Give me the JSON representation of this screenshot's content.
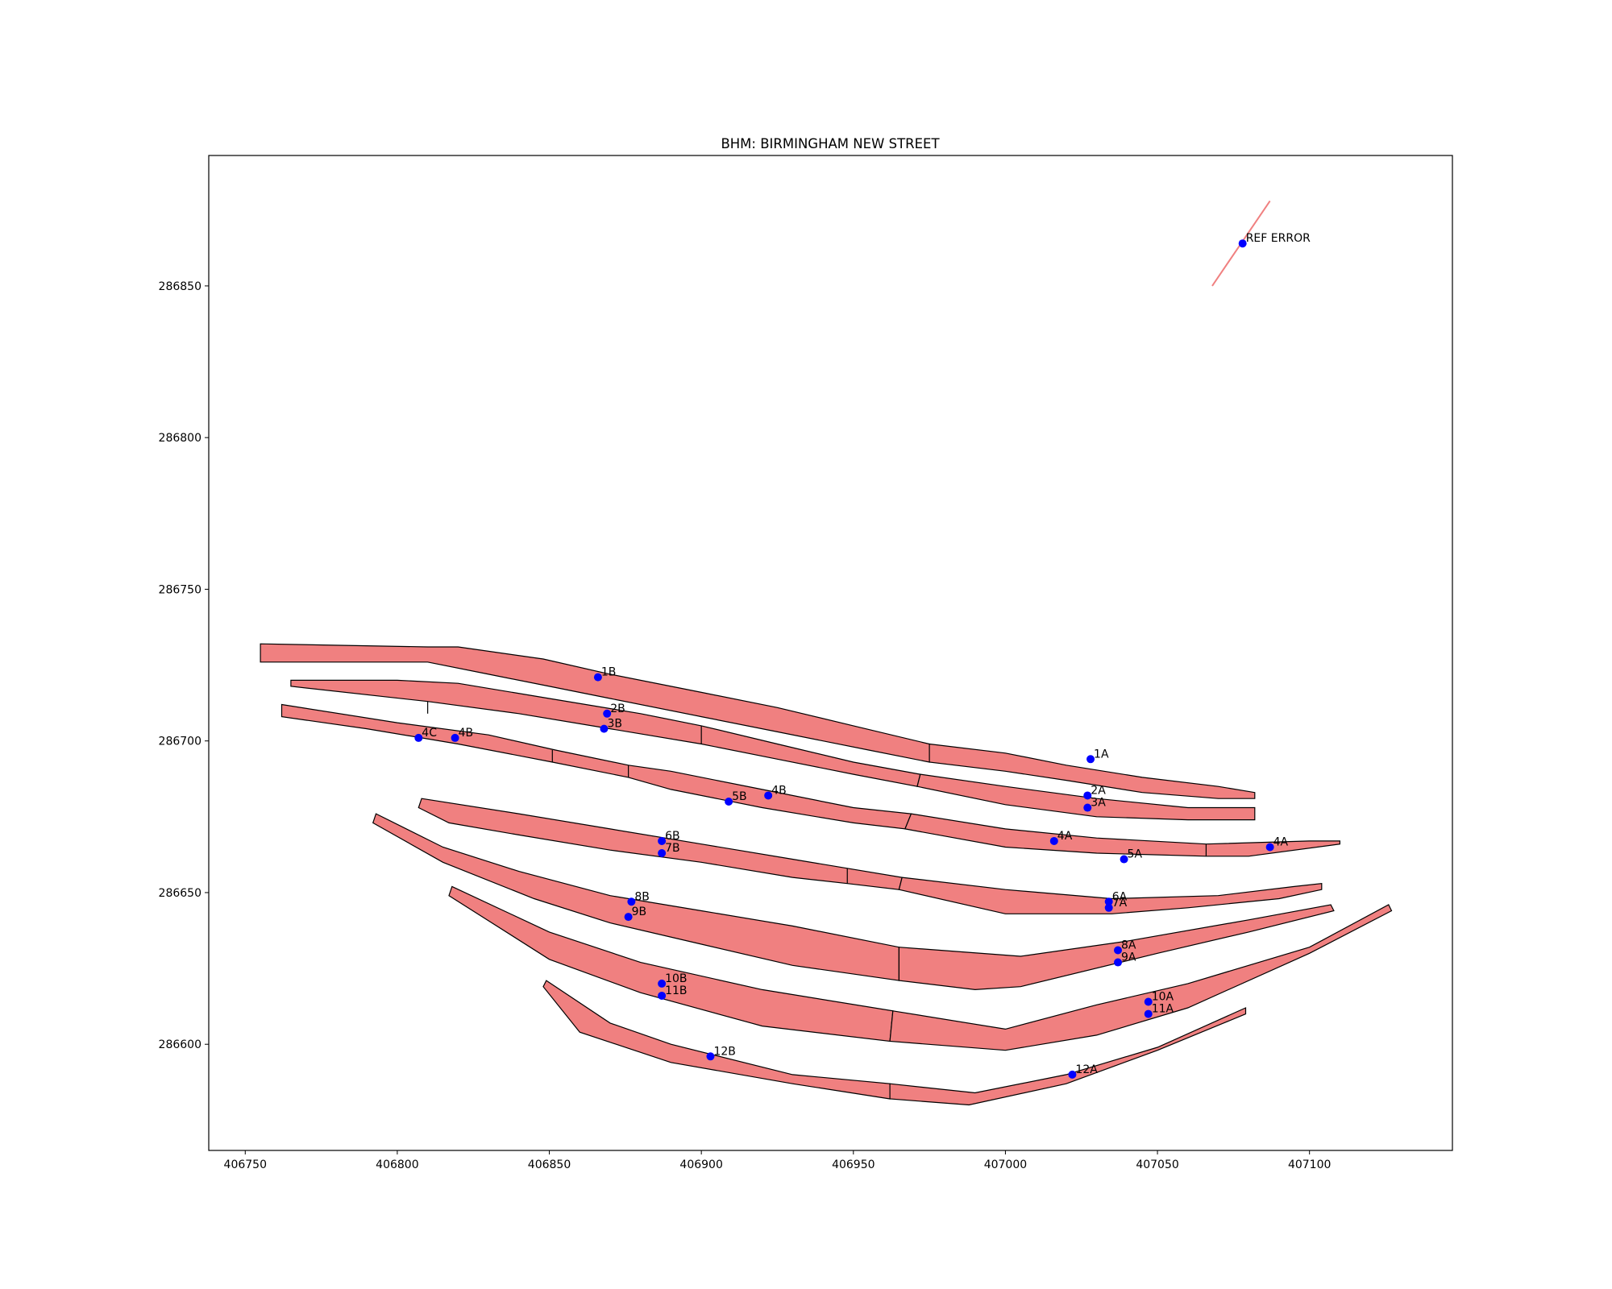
{
  "chart_data": {
    "type": "scatter",
    "title": "BHM: BIRMINGHAM NEW STREET",
    "xlabel": "",
    "ylabel": "",
    "xlim": [
      406738,
      407147
    ],
    "ylim": [
      286565,
      286893
    ],
    "xticks": [
      406750,
      406800,
      406850,
      406900,
      406950,
      407000,
      407050,
      407100
    ],
    "yticks": [
      286600,
      286650,
      286700,
      286750,
      286800,
      286850
    ],
    "grid": false,
    "colors": {
      "platform_fill": "#f08080",
      "platform_edge": "#000000",
      "point": "#0000ff",
      "error_line": "#f08080"
    },
    "points": [
      {
        "label": "REF ERROR",
        "x": 407078,
        "y": 286864
      },
      {
        "label": "1B",
        "x": 406866,
        "y": 286721
      },
      {
        "label": "1A",
        "x": 407028,
        "y": 286694
      },
      {
        "label": "2B",
        "x": 406869,
        "y": 286709
      },
      {
        "label": "3B",
        "x": 406868,
        "y": 286704
      },
      {
        "label": "2A",
        "x": 407027,
        "y": 286682
      },
      {
        "label": "3A",
        "x": 407027,
        "y": 286678
      },
      {
        "label": "4C",
        "x": 406807,
        "y": 286701
      },
      {
        "label": "4B",
        "x": 406819,
        "y": 286701
      },
      {
        "label": "5B",
        "x": 406909,
        "y": 286680
      },
      {
        "label": "4B",
        "x": 406922,
        "y": 286682
      },
      {
        "label": "4A",
        "x": 407016,
        "y": 286667
      },
      {
        "label": "5A",
        "x": 407039,
        "y": 286661
      },
      {
        "label": "4A",
        "x": 407087,
        "y": 286665
      },
      {
        "label": "6B",
        "x": 406887,
        "y": 286667
      },
      {
        "label": "7B",
        "x": 406887,
        "y": 286663
      },
      {
        "label": "6A",
        "x": 407034,
        "y": 286647
      },
      {
        "label": "7A",
        "x": 407034,
        "y": 286645
      },
      {
        "label": "8B",
        "x": 406877,
        "y": 286647
      },
      {
        "label": "9B",
        "x": 406876,
        "y": 286642
      },
      {
        "label": "8A",
        "x": 407037,
        "y": 286631
      },
      {
        "label": "9A",
        "x": 407037,
        "y": 286627
      },
      {
        "label": "10B",
        "x": 406887,
        "y": 286620
      },
      {
        "label": "11B",
        "x": 406887,
        "y": 286616
      },
      {
        "label": "10A",
        "x": 407047,
        "y": 286614
      },
      {
        "label": "11A",
        "x": 407047,
        "y": 286610
      },
      {
        "label": "12B",
        "x": 406903,
        "y": 286596
      },
      {
        "label": "12A",
        "x": 407022,
        "y": 286590
      }
    ],
    "error_line": [
      [
        407068,
        286850
      ],
      [
        407087,
        286878
      ]
    ],
    "platforms": [
      [
        [
          406755,
          286732
        ],
        [
          406810,
          286731
        ],
        [
          406820,
          286731
        ],
        [
          406848,
          286727
        ],
        [
          406870,
          286722
        ],
        [
          406900,
          286716
        ],
        [
          406925,
          286711
        ],
        [
          406950,
          286705
        ],
        [
          406975,
          286699
        ],
        [
          406975,
          286693
        ],
        [
          406955,
          286697
        ],
        [
          406925,
          286703
        ],
        [
          406900,
          286708
        ],
        [
          406870,
          286714
        ],
        [
          406850,
          286718
        ],
        [
          406830,
          286722
        ],
        [
          406810,
          286726
        ],
        [
          406755,
          286726
        ]
      ],
      [
        [
          406975,
          286699
        ],
        [
          407000,
          286696
        ],
        [
          407020,
          286692
        ],
        [
          407045,
          286688
        ],
        [
          407070,
          286685
        ],
        [
          407082,
          286683
        ],
        [
          407082,
          286681
        ],
        [
          407070,
          286681
        ],
        [
          407045,
          286683
        ],
        [
          407020,
          286687
        ],
        [
          407000,
          286690
        ],
        [
          406975,
          286693
        ]
      ],
      [
        [
          406765,
          286720
        ],
        [
          406800,
          286720
        ],
        [
          406820,
          286719
        ],
        [
          406850,
          286714
        ],
        [
          406880,
          286709
        ],
        [
          406900,
          286705
        ],
        [
          406925,
          286699
        ],
        [
          406950,
          286693
        ],
        [
          406972,
          286689
        ],
        [
          406971,
          286685
        ],
        [
          406950,
          286689
        ],
        [
          406925,
          286694
        ],
        [
          406900,
          286699
        ],
        [
          406870,
          286704
        ],
        [
          406840,
          286709
        ],
        [
          406810,
          286713
        ],
        [
          406765,
          286718
        ]
      ],
      [
        [
          406972,
          286689
        ],
        [
          407000,
          286685
        ],
        [
          407030,
          286681
        ],
        [
          407060,
          286678
        ],
        [
          407082,
          286678
        ],
        [
          407082,
          286674
        ],
        [
          407060,
          286674
        ],
        [
          407030,
          286675
        ],
        [
          407000,
          286679
        ],
        [
          406971,
          286685
        ]
      ],
      [
        [
          406762,
          286712
        ],
        [
          406800,
          286706
        ],
        [
          406830,
          286702
        ],
        [
          406852,
          286697
        ],
        [
          406876,
          286692
        ],
        [
          406890,
          286690
        ],
        [
          406920,
          286684
        ],
        [
          406950,
          286678
        ],
        [
          406969,
          286676
        ],
        [
          406967,
          286671
        ],
        [
          406950,
          286673
        ],
        [
          406920,
          286678
        ],
        [
          406890,
          286684
        ],
        [
          406876,
          286688
        ],
        [
          406851,
          286693
        ],
        [
          406820,
          286699
        ],
        [
          406790,
          286704
        ],
        [
          406762,
          286708
        ]
      ],
      [
        [
          406969,
          286676
        ],
        [
          407000,
          286671
        ],
        [
          407030,
          286668
        ],
        [
          407066,
          286666
        ],
        [
          407100,
          286667
        ],
        [
          407110,
          286667
        ],
        [
          407110,
          286666
        ],
        [
          407080,
          286662
        ],
        [
          407066,
          286662
        ],
        [
          407030,
          286663
        ],
        [
          407000,
          286665
        ],
        [
          406967,
          286671
        ]
      ],
      [
        [
          406808,
          286681
        ],
        [
          406840,
          286676
        ],
        [
          406870,
          286671
        ],
        [
          406900,
          286666
        ],
        [
          406930,
          286661
        ],
        [
          406948,
          286658
        ],
        [
          406966,
          286655
        ],
        [
          406965,
          286651
        ],
        [
          406948,
          286653
        ],
        [
          406930,
          286655
        ],
        [
          406900,
          286660
        ],
        [
          406870,
          286664
        ],
        [
          406840,
          286669
        ],
        [
          406817,
          286673
        ],
        [
          406807,
          286678
        ]
      ],
      [
        [
          406966,
          286655
        ],
        [
          407000,
          286651
        ],
        [
          407035,
          286648
        ],
        [
          407070,
          286649
        ],
        [
          407095,
          286652
        ],
        [
          407104,
          286653
        ],
        [
          407104,
          286651
        ],
        [
          407090,
          286648
        ],
        [
          407060,
          286645
        ],
        [
          407035,
          286643
        ],
        [
          407000,
          286643
        ],
        [
          406965,
          286651
        ]
      ],
      [
        [
          406793,
          286676
        ],
        [
          406815,
          286665
        ],
        [
          406840,
          286657
        ],
        [
          406870,
          286649
        ],
        [
          406900,
          286644
        ],
        [
          406930,
          286639
        ],
        [
          406965,
          286632
        ],
        [
          406965,
          286621
        ],
        [
          406930,
          286626
        ],
        [
          406900,
          286633
        ],
        [
          406870,
          286640
        ],
        [
          406845,
          286648
        ],
        [
          406815,
          286660
        ],
        [
          406792,
          286673
        ]
      ],
      [
        [
          406965,
          286632
        ],
        [
          407005,
          286629
        ],
        [
          407040,
          286634
        ],
        [
          407080,
          286641
        ],
        [
          407107,
          286646
        ],
        [
          407108,
          286644
        ],
        [
          407080,
          286637
        ],
        [
          407050,
          286630
        ],
        [
          407005,
          286619
        ],
        [
          406990,
          286618
        ],
        [
          406965,
          286621
        ]
      ],
      [
        [
          406818,
          286652
        ],
        [
          406850,
          286637
        ],
        [
          406880,
          286627
        ],
        [
          406920,
          286618
        ],
        [
          406963,
          286611
        ],
        [
          406962,
          286601
        ],
        [
          406920,
          286606
        ],
        [
          406880,
          286617
        ],
        [
          406850,
          286628
        ],
        [
          406817,
          286649
        ]
      ],
      [
        [
          406963,
          286611
        ],
        [
          407000,
          286605
        ],
        [
          407030,
          286613
        ],
        [
          407060,
          286620
        ],
        [
          407100,
          286632
        ],
        [
          407126,
          286646
        ],
        [
          407127,
          286644
        ],
        [
          407100,
          286630
        ],
        [
          407060,
          286612
        ],
        [
          407030,
          286603
        ],
        [
          407000,
          286598
        ],
        [
          406962,
          286601
        ]
      ],
      [
        [
          406849,
          286621
        ],
        [
          406870,
          286607
        ],
        [
          406890,
          286600
        ],
        [
          406930,
          286590
        ],
        [
          406962,
          286587
        ],
        [
          406962,
          286582
        ],
        [
          406930,
          286587
        ],
        [
          406890,
          286594
        ],
        [
          406860,
          286604
        ],
        [
          406848,
          286619
        ]
      ],
      [
        [
          406962,
          286587
        ],
        [
          406990,
          286584
        ],
        [
          407020,
          286590
        ],
        [
          407050,
          286599
        ],
        [
          407079,
          286612
        ],
        [
          407079,
          286610
        ],
        [
          407050,
          286598
        ],
        [
          407020,
          286587
        ],
        [
          406988,
          286580
        ],
        [
          406962,
          286582
        ]
      ]
    ],
    "dividers": [
      [
        [
          406810,
          286713
        ],
        [
          406810,
          286709
        ]
      ],
      [
        [
          406851,
          286697
        ],
        [
          406851,
          286693
        ]
      ],
      [
        [
          406876,
          286692
        ],
        [
          406876,
          286688
        ]
      ],
      [
        [
          407066,
          286666
        ],
        [
          407066,
          286662
        ]
      ],
      [
        [
          406948,
          286658
        ],
        [
          406948,
          286653
        ]
      ],
      [
        [
          406900,
          286705
        ],
        [
          406900,
          286699
        ]
      ]
    ]
  }
}
